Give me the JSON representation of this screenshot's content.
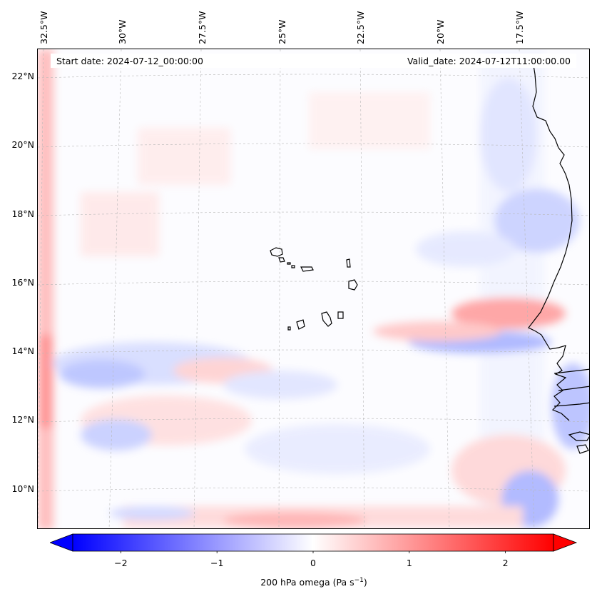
{
  "title": {
    "start_date": "Start date: 2024-07-12_00:00:00",
    "valid_date": "Valid_date: 2024-07-12T11:00:00.00"
  },
  "map": {
    "longitude_labels": [
      "32.5°W",
      "30°W",
      "27.5°W",
      "25°W",
      "22.5°W",
      "20°W",
      "17.5°W"
    ],
    "latitude_labels": [
      "22°N",
      "20°N",
      "18°N",
      "16°N",
      "14°N",
      "12°N",
      "10°N"
    ],
    "field": "200 hPa omega",
    "features": [
      "cape-verde-islands",
      "west-africa-coastline"
    ]
  },
  "colorbar": {
    "label_prefix": "200 hPa omega (Pa s",
    "label_exponent": "−1",
    "label_suffix": ")",
    "tick_labels": [
      "−2",
      "−1",
      "0",
      "1",
      "2"
    ],
    "tick_values": [
      -2,
      -1,
      0,
      1,
      2
    ],
    "range": [
      -2.5,
      2.5
    ],
    "low_color": "#0000ff",
    "mid_color": "#ffffff",
    "high_color": "#ff0000",
    "extend": "both"
  }
}
